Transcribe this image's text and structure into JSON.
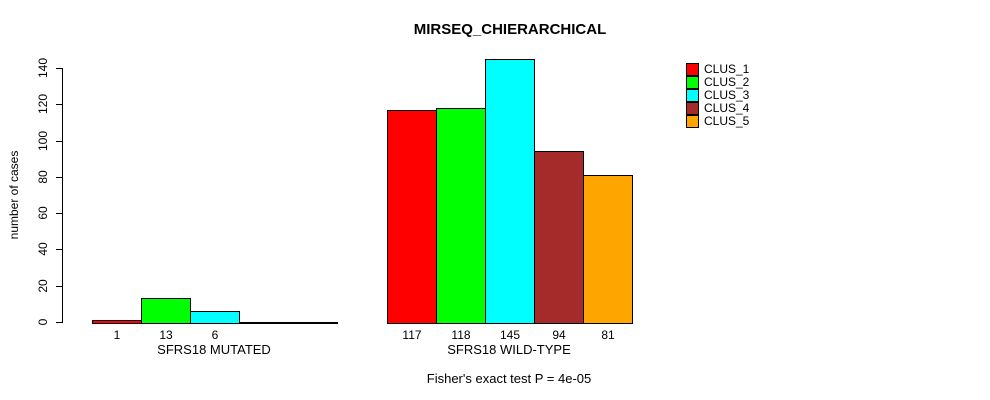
{
  "chart_data": {
    "type": "bar",
    "title": "MIRSEQ_CHIERARCHICAL",
    "ylabel": "number of cases",
    "xlabel": "",
    "ylim": [
      0,
      140
    ],
    "yticks": [
      0,
      20,
      40,
      60,
      80,
      100,
      120,
      140
    ],
    "grid": false,
    "legend_position": "right",
    "categories": [
      "CLUS_1",
      "CLUS_2",
      "CLUS_3",
      "CLUS_4",
      "CLUS_5"
    ],
    "series_colors": [
      "#FF0000",
      "#00FF00",
      "#00FFFF",
      "#A52A2A",
      "#FFA500"
    ],
    "groups": [
      {
        "key": "mutated",
        "label": "SFRS18 MUTATED",
        "values": [
          1,
          13,
          6,
          0,
          0
        ],
        "bar_labels": [
          "1",
          "13",
          "6",
          "",
          ""
        ]
      },
      {
        "key": "wild-type",
        "label": "SFRS18 WILD-TYPE",
        "values": [
          117,
          118,
          145,
          94,
          81
        ],
        "bar_labels": [
          "117",
          "118",
          "145",
          "94",
          "81"
        ]
      }
    ],
    "legend": [
      {
        "label": "CLUS_1",
        "color": "#FF0000"
      },
      {
        "label": "CLUS_2",
        "color": "#00FF00"
      },
      {
        "label": "CLUS_3",
        "color": "#00FFFF"
      },
      {
        "label": "CLUS_4",
        "color": "#A52A2A"
      },
      {
        "label": "CLUS_5",
        "color": "#FFA500"
      }
    ],
    "caption": "Fisher's exact test P = 4e-05"
  }
}
